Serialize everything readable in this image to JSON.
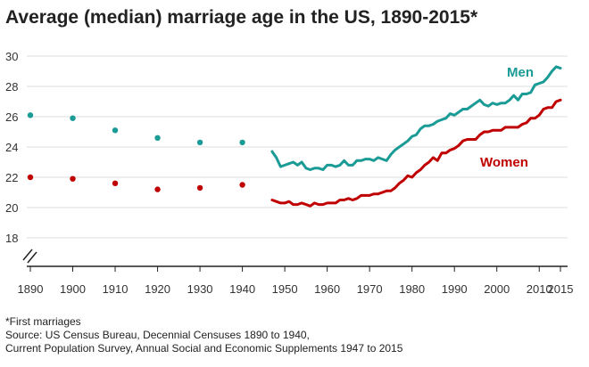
{
  "title": "Average (median) marriage age in the US, 1890-2015*",
  "footnotes": [
    "*First marriages",
    "Source: US Census Bureau, Decennial Censuses 1890 to 1940,",
    "Current Population Survey, Annual Social and Economic Supplements 1947 to 2015"
  ],
  "colors": {
    "men": "#1a9b95",
    "women": "#c00000",
    "grid": "#dddddd",
    "axis": "#222222"
  },
  "chart_data": {
    "type": "line",
    "title": "Average (median) marriage age in the US, 1890-2015*",
    "xlim": [
      1890,
      2015
    ],
    "ylim": [
      16,
      30
    ],
    "x_ticks": [
      1890,
      1900,
      1910,
      1920,
      1930,
      1940,
      1950,
      1960,
      1970,
      1980,
      1990,
      2000,
      2010,
      2015
    ],
    "y_ticks": [
      18,
      20,
      22,
      24,
      26,
      28,
      30
    ],
    "grid": true,
    "axis_break": true,
    "decennial_points": {
      "x": [
        1890,
        1900,
        1910,
        1920,
        1930,
        1940
      ],
      "men": [
        26.1,
        25.9,
        25.1,
        24.6,
        24.3,
        24.3
      ],
      "women": [
        22.0,
        21.9,
        21.6,
        21.2,
        21.3,
        21.5
      ]
    },
    "series": [
      {
        "name": "Men",
        "x": [
          1947,
          1948,
          1949,
          1950,
          1951,
          1952,
          1953,
          1954,
          1955,
          1956,
          1957,
          1958,
          1959,
          1960,
          1961,
          1962,
          1963,
          1964,
          1965,
          1966,
          1967,
          1968,
          1969,
          1970,
          1971,
          1972,
          1973,
          1974,
          1975,
          1976,
          1977,
          1978,
          1979,
          1980,
          1981,
          1982,
          1983,
          1984,
          1985,
          1986,
          1987,
          1988,
          1989,
          1990,
          1991,
          1992,
          1993,
          1994,
          1995,
          1996,
          1997,
          1998,
          1999,
          2000,
          2001,
          2002,
          2003,
          2004,
          2005,
          2006,
          2007,
          2008,
          2009,
          2010,
          2011,
          2012,
          2013,
          2014,
          2015
        ],
        "values": [
          23.7,
          23.3,
          22.7,
          22.8,
          22.9,
          23.0,
          22.8,
          23.0,
          22.6,
          22.5,
          22.6,
          22.6,
          22.5,
          22.8,
          22.8,
          22.7,
          22.8,
          23.1,
          22.8,
          22.8,
          23.1,
          23.1,
          23.2,
          23.2,
          23.1,
          23.3,
          23.2,
          23.1,
          23.5,
          23.8,
          24.0,
          24.2,
          24.4,
          24.7,
          24.8,
          25.2,
          25.4,
          25.4,
          25.5,
          25.7,
          25.8,
          25.9,
          26.2,
          26.1,
          26.3,
          26.5,
          26.5,
          26.7,
          26.9,
          27.1,
          26.8,
          26.7,
          26.9,
          26.8,
          26.9,
          26.9,
          27.1,
          27.4,
          27.1,
          27.5,
          27.5,
          27.6,
          28.1,
          28.2,
          28.3,
          28.6,
          29.0,
          29.3,
          29.2
        ]
      },
      {
        "name": "Women",
        "x": [
          1947,
          1948,
          1949,
          1950,
          1951,
          1952,
          1953,
          1954,
          1955,
          1956,
          1957,
          1958,
          1959,
          1960,
          1961,
          1962,
          1963,
          1964,
          1965,
          1966,
          1967,
          1968,
          1969,
          1970,
          1971,
          1972,
          1973,
          1974,
          1975,
          1976,
          1977,
          1978,
          1979,
          1980,
          1981,
          1982,
          1983,
          1984,
          1985,
          1986,
          1987,
          1988,
          1989,
          1990,
          1991,
          1992,
          1993,
          1994,
          1995,
          1996,
          1997,
          1998,
          1999,
          2000,
          2001,
          2002,
          2003,
          2004,
          2005,
          2006,
          2007,
          2008,
          2009,
          2010,
          2011,
          2012,
          2013,
          2014,
          2015
        ],
        "values": [
          20.5,
          20.4,
          20.3,
          20.3,
          20.4,
          20.2,
          20.2,
          20.3,
          20.2,
          20.1,
          20.3,
          20.2,
          20.2,
          20.3,
          20.3,
          20.3,
          20.5,
          20.5,
          20.6,
          20.5,
          20.6,
          20.8,
          20.8,
          20.8,
          20.9,
          20.9,
          21.0,
          21.1,
          21.1,
          21.3,
          21.6,
          21.8,
          22.1,
          22.0,
          22.3,
          22.5,
          22.8,
          23.0,
          23.3,
          23.1,
          23.6,
          23.6,
          23.8,
          23.9,
          24.1,
          24.4,
          24.5,
          24.5,
          24.5,
          24.8,
          25.0,
          25.0,
          25.1,
          25.1,
          25.1,
          25.3,
          25.3,
          25.3,
          25.3,
          25.5,
          25.6,
          25.9,
          25.9,
          26.1,
          26.5,
          26.6,
          26.6,
          27.0,
          27.1
        ]
      }
    ],
    "annotations": [
      {
        "text": "Men",
        "series": "Men"
      },
      {
        "text": "Women",
        "series": "Women"
      }
    ]
  }
}
